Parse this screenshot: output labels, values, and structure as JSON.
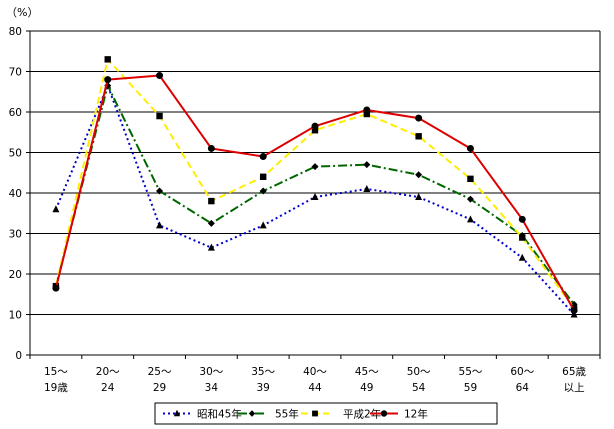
{
  "chart_data": {
    "type": "line",
    "unit_label": "（%）",
    "ylim": [
      0,
      80
    ],
    "y_ticks": [
      "0",
      "10",
      "20",
      "30",
      "40",
      "50",
      "60",
      "70",
      "80"
    ],
    "grid": true,
    "legend_position": "bottom",
    "categories": [
      [
        "15～",
        "19歳"
      ],
      [
        "20～",
        "24"
      ],
      [
        "25～",
        "29"
      ],
      [
        "30～",
        "34"
      ],
      [
        "35～",
        "39"
      ],
      [
        "40～",
        "44"
      ],
      [
        "45～",
        "49"
      ],
      [
        "50～",
        "54"
      ],
      [
        "55～",
        "59"
      ],
      [
        "60～",
        "64"
      ],
      [
        "65歳",
        "以上"
      ]
    ],
    "series": [
      {
        "name": "昭和45年",
        "color": "#0000cc",
        "line_style": "dotted",
        "marker": "triangle",
        "values": [
          36,
          66.5,
          32,
          26.5,
          32,
          39,
          41,
          39,
          33.5,
          24,
          10
        ]
      },
      {
        "name": "55年",
        "color": "#006600",
        "line_style": "dashdot",
        "marker": "diamond",
        "values": [
          17,
          66.5,
          40.5,
          32.5,
          40.5,
          46.5,
          47,
          44.5,
          38.5,
          29.5,
          12.5
        ]
      },
      {
        "name": "平成2年",
        "color": "#ffee00",
        "line_style": "dashed",
        "marker": "square",
        "values": [
          17,
          73,
          59,
          38,
          44,
          55.5,
          59.5,
          54,
          43.5,
          29,
          11.5
        ]
      },
      {
        "name": "12年",
        "color": "#dd0000",
        "line_style": "solid",
        "marker": "circle",
        "values": [
          16.5,
          68,
          69,
          51,
          49,
          56.5,
          60.5,
          58.5,
          51,
          33.5,
          11
        ]
      }
    ]
  }
}
